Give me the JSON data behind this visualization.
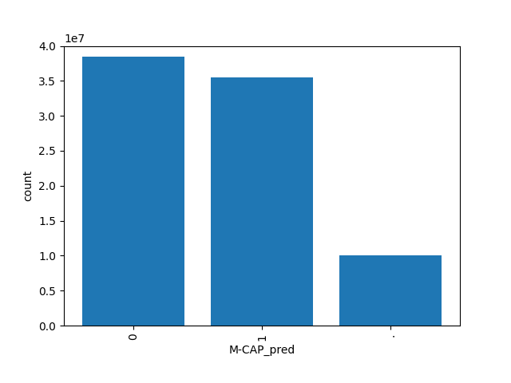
{
  "categories": [
    "0",
    "1",
    "."
  ],
  "values": [
    38500000,
    35500000,
    10000000
  ],
  "bar_color": "#1f77b4",
  "title": "",
  "xlabel": "M-CAP_pred",
  "ylabel": "count",
  "ylim": [
    0,
    40000000
  ],
  "yticks": [
    0,
    5000000,
    10000000,
    15000000,
    20000000,
    25000000,
    30000000,
    35000000,
    40000000
  ],
  "figsize": [
    6.4,
    4.8
  ],
  "dpi": 100
}
